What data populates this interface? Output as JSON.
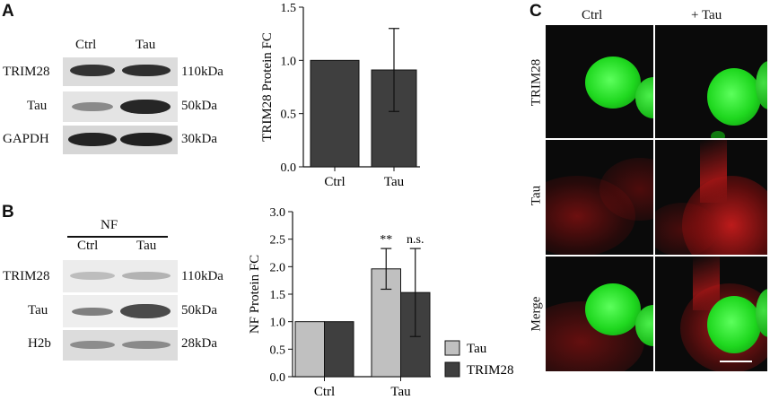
{
  "panels": {
    "a": "A",
    "b": "B",
    "c": "C"
  },
  "blot_a": {
    "lanes": [
      "Ctrl",
      "Tau"
    ],
    "rows": [
      {
        "protein": "TRIM28",
        "size": "110kDa"
      },
      {
        "protein": "Tau",
        "size": "50kDa"
      },
      {
        "protein": "GAPDH",
        "size": "30kDa"
      }
    ]
  },
  "blot_b": {
    "header": "NF",
    "lanes": [
      "Ctrl",
      "Tau"
    ],
    "rows": [
      {
        "protein": "TRIM28",
        "size": "110kDa"
      },
      {
        "protein": "Tau",
        "size": "50kDa"
      },
      {
        "protein": "H2b",
        "size": "28kDa"
      }
    ]
  },
  "chart_data": [
    {
      "type": "bar",
      "panel": "A",
      "categories": [
        "Ctrl",
        "Tau"
      ],
      "values": [
        1.0,
        0.91
      ],
      "errors": [
        0,
        0.39
      ],
      "ylabel": "TRIM28 Protein FC",
      "ylim": [
        0,
        1.5
      ],
      "yticks": [
        "0.0",
        "0.5",
        "1.0",
        "1.5"
      ],
      "bar_color": "#3f3f3f"
    },
    {
      "type": "bar",
      "panel": "B",
      "categories": [
        "Ctrl",
        "Tau"
      ],
      "series": [
        {
          "name": "Tau",
          "values": [
            1.0,
            1.96
          ],
          "errors": [
            0,
            0.37
          ],
          "color": "#c0c0c0"
        },
        {
          "name": "TRIM28",
          "values": [
            1.0,
            1.53
          ],
          "errors": [
            0,
            0.8
          ],
          "color": "#3f3f3f"
        }
      ],
      "annotations": [
        "**",
        "n.s."
      ],
      "ylabel": "NF Protein FC",
      "ylim": [
        0,
        3.0
      ],
      "yticks": [
        "0.0",
        "0.5",
        "1.0",
        "1.5",
        "2.0",
        "2.5",
        "3.0"
      ],
      "legend_position": "right"
    }
  ],
  "micrograph": {
    "columns": [
      "Ctrl",
      "+ Tau"
    ],
    "rows": [
      "TRIM28",
      "Tau",
      "Merge"
    ]
  }
}
